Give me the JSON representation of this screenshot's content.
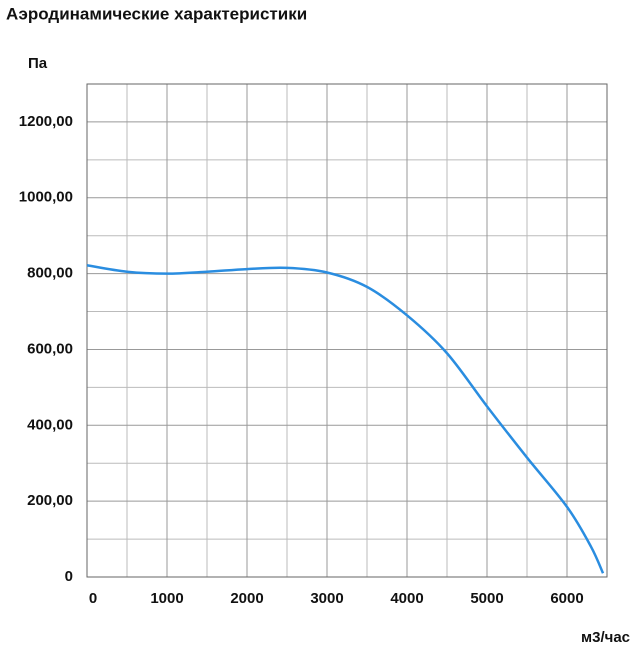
{
  "chart_data": {
    "type": "line",
    "title": "Аэродинамические характеристики",
    "y_label": "Па",
    "x_label": "м3/час",
    "x": [
      0,
      500,
      1000,
      1500,
      2000,
      2500,
      3000,
      3500,
      4000,
      4500,
      5000,
      5500,
      6000,
      6300,
      6450
    ],
    "series": [
      {
        "color": "#2a8de0",
        "values": [
          822,
          805,
          800,
          805,
          812,
          815,
          803,
          765,
          690,
          590,
          450,
          315,
          185,
          80,
          10
        ]
      }
    ],
    "xlim": [
      0,
      6500
    ],
    "ylim": [
      0,
      1300
    ],
    "xticks": [
      0,
      1000,
      2000,
      3000,
      4000,
      5000,
      6000
    ],
    "yticks": [
      0,
      {
        "value": 200,
        "label": "200,00"
      },
      {
        "value": 400,
        "label": "400,00"
      },
      {
        "value": 600,
        "label": "600,00"
      },
      {
        "value": 800,
        "label": "800,00"
      },
      {
        "value": 1000,
        "label": "1000,00"
      },
      {
        "value": 1200,
        "label": "1200,00"
      }
    ],
    "grid": true
  }
}
